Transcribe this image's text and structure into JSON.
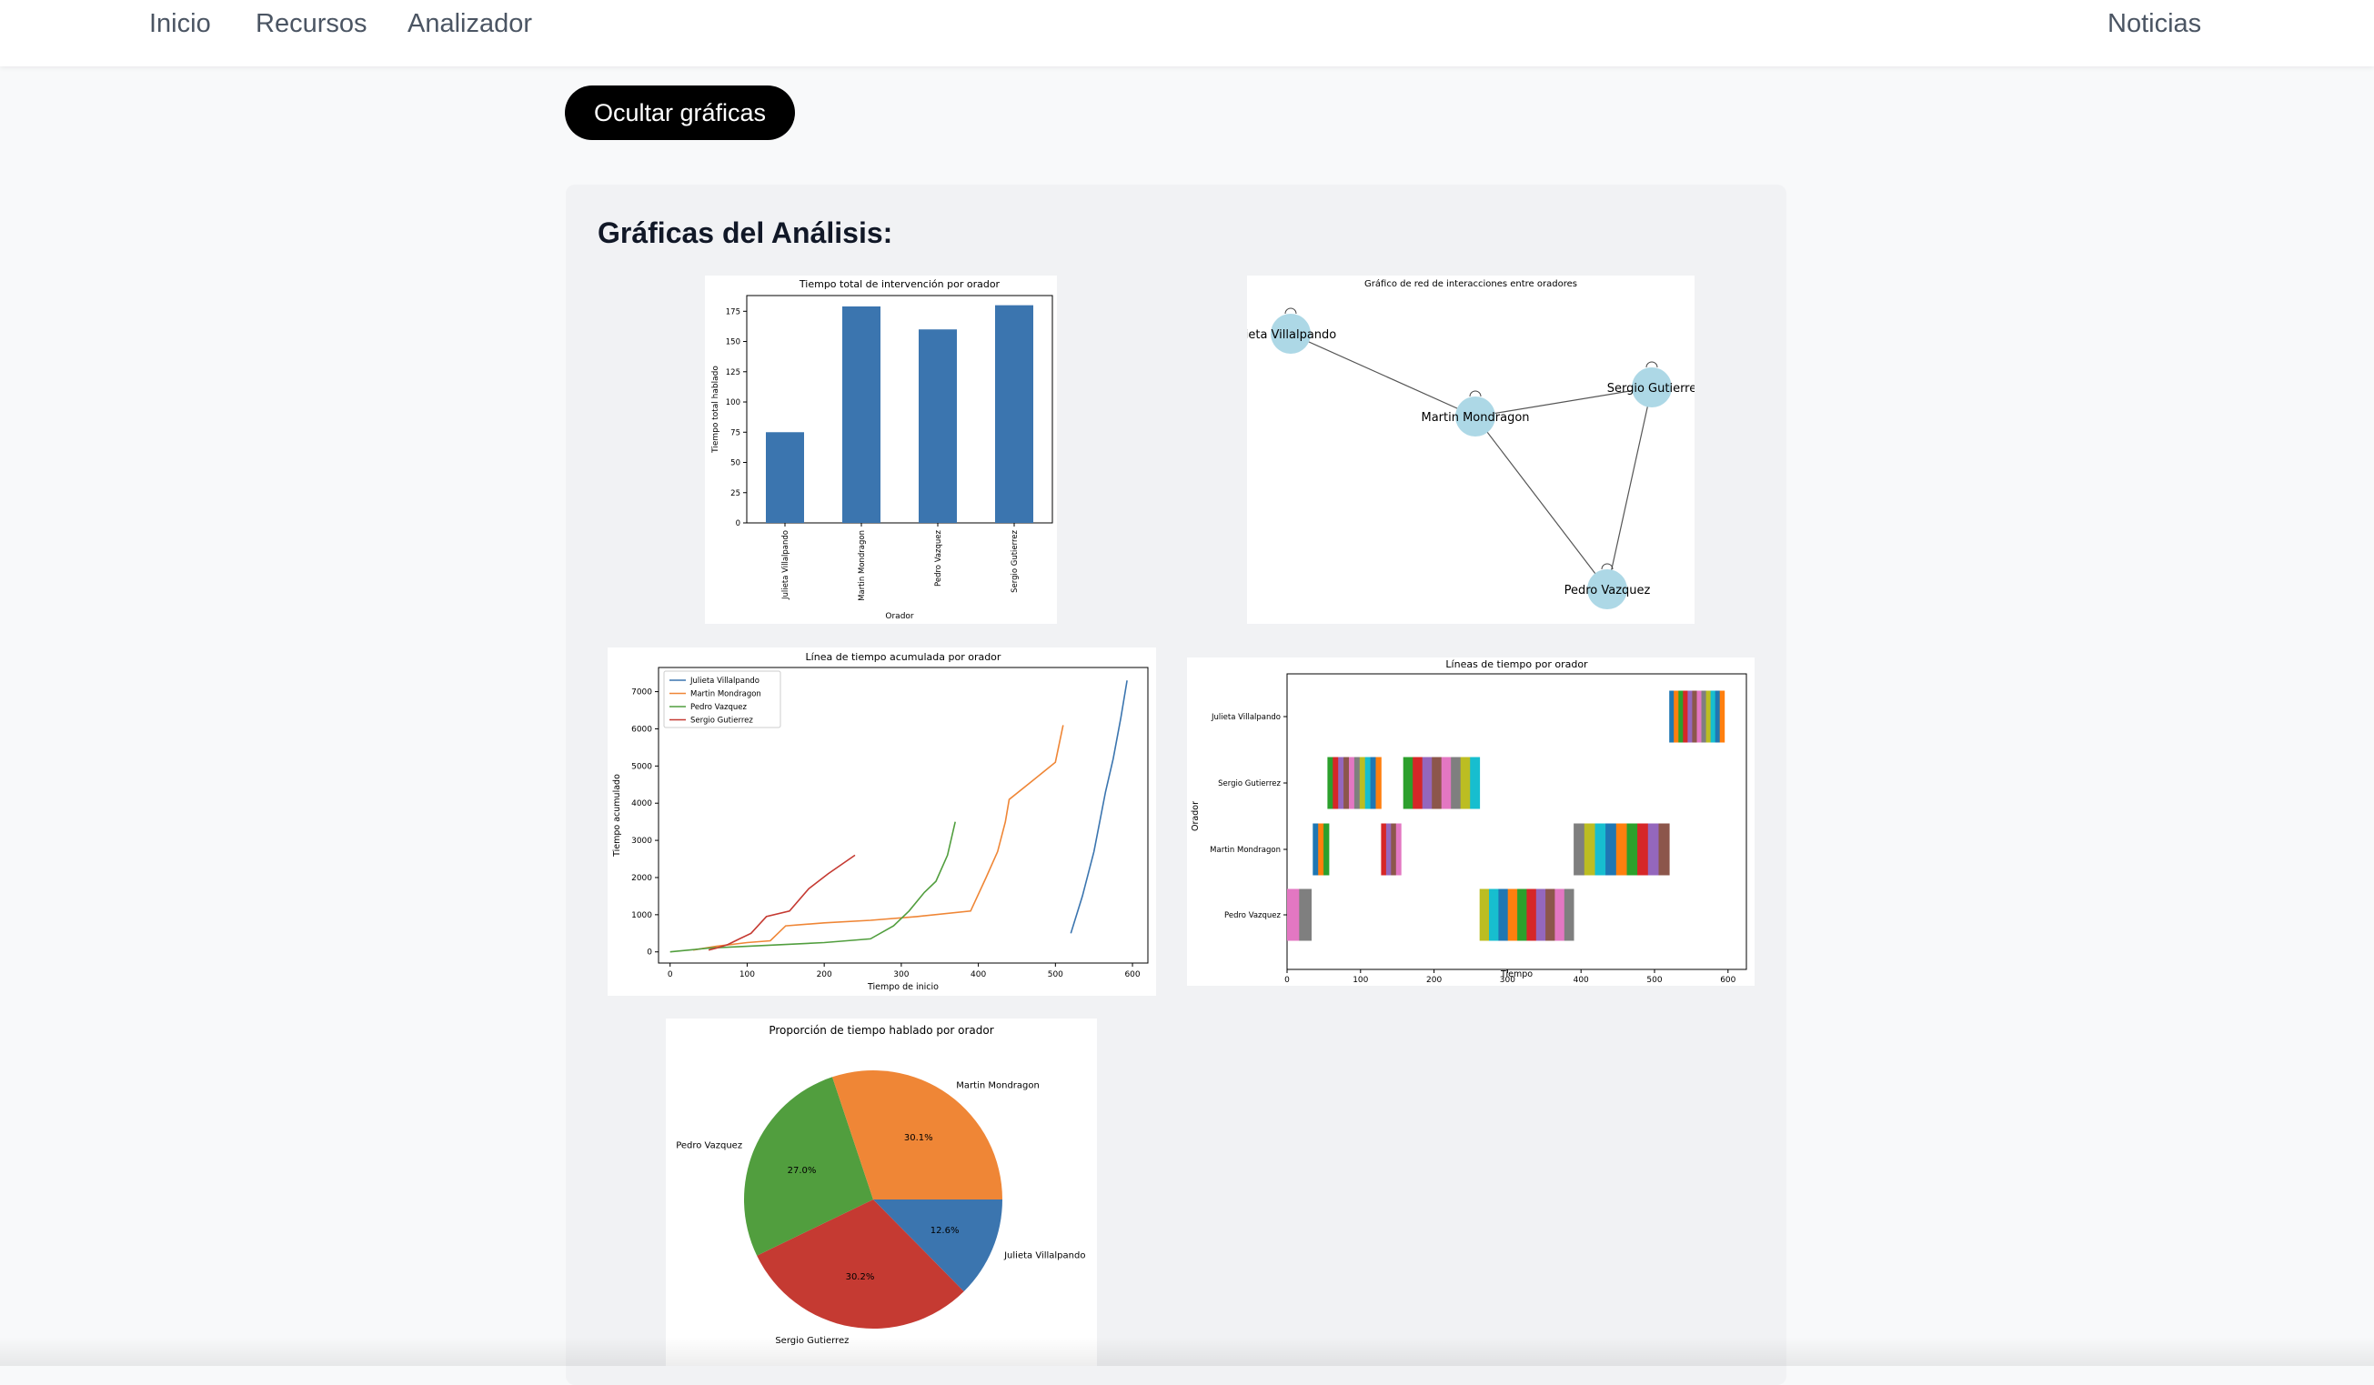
{
  "nav": {
    "home": "Inicio",
    "resources": "Recursos",
    "analyzer": "Analizador",
    "news": "Noticias"
  },
  "toggle_button": "Ocultar gráficas",
  "section_title": "Gráficas del Análisis:",
  "colors": {
    "blue": "#3b75af",
    "orange": "#ef8636",
    "green": "#519e3e",
    "red": "#c53a32",
    "node": "#add8e6"
  },
  "chart_data": [
    {
      "type": "bar",
      "title": "Tiempo total de intervención por orador",
      "xlabel": "Orador",
      "ylabel": "Tiempo total hablado",
      "categories": [
        "Julieta Villalpando",
        "Martin Mondragon",
        "Pedro Vazquez",
        "Sergio Gutierrez"
      ],
      "values": [
        75,
        179,
        160,
        180
      ],
      "ylim": [
        0,
        188
      ],
      "yticks": [
        0,
        25,
        50,
        75,
        100,
        125,
        150,
        175
      ]
    },
    {
      "type": "network",
      "title": "Gráfico de red de interacciones entre oradores",
      "nodes": [
        {
          "label": "Julieta Villalpando",
          "shown": "ieta Villalpando"
        },
        {
          "label": "Martin Mondragon",
          "shown": "Martin Mondragon"
        },
        {
          "label": "Sergio Gutierrez",
          "shown": "Sergio Gutierre"
        },
        {
          "label": "Pedro Vazquez",
          "shown": "Pedro Vazquez"
        }
      ],
      "edges": [
        [
          0,
          1
        ],
        [
          1,
          2
        ],
        [
          1,
          3
        ],
        [
          2,
          3
        ]
      ]
    },
    {
      "type": "line",
      "title": "Línea de tiempo acumulada por orador",
      "xlabel": "Tiempo de inicio",
      "ylabel": "Tiempo acumulado",
      "xlim": [
        -15,
        620
      ],
      "ylim": [
        -300,
        7650
      ],
      "xticks": [
        0,
        100,
        200,
        300,
        400,
        500,
        600
      ],
      "yticks": [
        0,
        1000,
        2000,
        3000,
        4000,
        5000,
        6000,
        7000
      ],
      "legend_position": "upper-left",
      "series": [
        {
          "name": "Julieta Villalpando",
          "x": [
            520,
            535,
            550,
            565,
            575,
            585,
            593
          ],
          "y": [
            500,
            1500,
            2700,
            4300,
            5200,
            6300,
            7300
          ]
        },
        {
          "name": "Martin Mondragon",
          "x": [
            30,
            60,
            100,
            130,
            150,
            200,
            260,
            320,
            390,
            410,
            425,
            435,
            440,
            470,
            500,
            510
          ],
          "y": [
            50,
            150,
            250,
            300,
            700,
            780,
            850,
            950,
            1100,
            2000,
            2700,
            3500,
            4100,
            4600,
            5100,
            6100
          ]
        },
        {
          "name": "Pedro Vazquez",
          "x": [
            0,
            50,
            100,
            150,
            200,
            260,
            290,
            310,
            330,
            345,
            360,
            370
          ],
          "y": [
            0,
            100,
            150,
            200,
            250,
            350,
            700,
            1100,
            1600,
            1900,
            2600,
            3500
          ]
        },
        {
          "name": "Sergio Gutierrez",
          "x": [
            50,
            60,
            75,
            90,
            105,
            125,
            155,
            180,
            205,
            240
          ],
          "y": [
            50,
            100,
            200,
            350,
            500,
            950,
            1100,
            1700,
            2100,
            2600
          ]
        }
      ]
    },
    {
      "type": "timeline",
      "title": "Líneas de tiempo por orador",
      "xlabel": "Tiempo",
      "ylabel": "Orador",
      "xlim": [
        0,
        625
      ],
      "xticks": [
        0,
        100,
        200,
        300,
        400,
        500,
        600
      ],
      "rows": [
        "Julieta Villalpando",
        "Sergio Gutierrez",
        "Martin Mondragon",
        "Pedro Vazquez"
      ],
      "blocks": [
        {
          "start": 520,
          "end": 595,
          "segments": 12
        },
        {
          "start": 55,
          "end": 128,
          "segments": 10
        },
        {
          "start": 158,
          "end": 262,
          "segments": 8
        },
        {
          "start": 35,
          "end": 57,
          "segments": 3
        },
        {
          "start": 128,
          "end": 155,
          "segments": 4
        },
        {
          "start": 390,
          "end": 520,
          "segments": 9
        },
        {
          "start": 0,
          "end": 33,
          "segments": 2
        },
        {
          "start": 262,
          "end": 390,
          "segments": 10
        }
      ]
    },
    {
      "type": "pie",
      "title": "Proporción de tiempo hablado por orador",
      "labels": [
        "Julieta Villalpando",
        "Sergio Gutierrez",
        "Pedro Vazquez",
        "Martin Mondragon"
      ],
      "values": [
        12.6,
        30.2,
        27.0,
        30.1
      ],
      "pct_labels": [
        "12.6%",
        "30.2%",
        "27.0%",
        "30.1%"
      ]
    }
  ]
}
